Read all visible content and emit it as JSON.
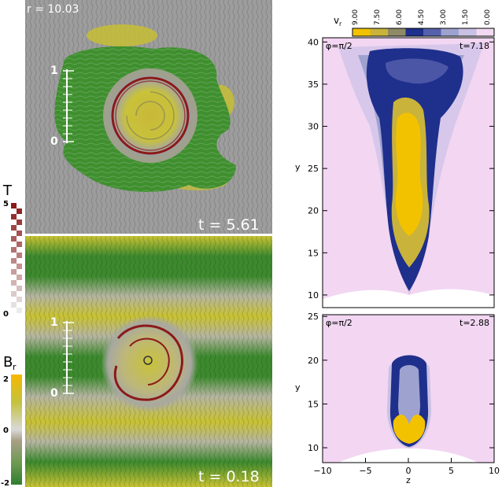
{
  "left_panels": {
    "top": {
      "radius_label": "r = 10.03",
      "time_label": "t = 5.61",
      "scale_ticks": [
        "1",
        "0"
      ]
    },
    "bottom": {
      "time_label": "t = 0.18",
      "scale_ticks": [
        "1",
        "0"
      ]
    }
  },
  "colorbars": {
    "temperature": {
      "label": "T",
      "max": "5",
      "min": "0"
    },
    "br": {
      "label": "B",
      "subscript": "r",
      "ticks": [
        "2",
        "0",
        "-2"
      ]
    },
    "vr": {
      "label": "v",
      "subscript": "r",
      "ticks": [
        "9.00",
        "7.50",
        "6.00",
        "4.50",
        "3.00",
        "1.50",
        "0.00"
      ],
      "colors": [
        "#f2c200",
        "#c9b33a",
        "#8e8a66",
        "#1f2f8c",
        "#5661ad",
        "#9ea2cf",
        "#c9c1e4",
        "#f2d8f2"
      ]
    }
  },
  "right_panels": {
    "top": {
      "phi_label": "φ=π/2",
      "time_label": "t=7.18",
      "ylabel": "y",
      "yticks": [
        "40",
        "35",
        "30",
        "25",
        "20",
        "15",
        "10"
      ]
    },
    "bottom": {
      "phi_label": "φ=π/2",
      "time_label": "t=2.88",
      "ylabel": "y",
      "xlabel": "z",
      "yticks": [
        "25",
        "20",
        "15",
        "10"
      ],
      "xticks": [
        "−10",
        "−5",
        "0",
        "5",
        "10"
      ]
    }
  },
  "colors": {
    "field_green": "#3f8f2f",
    "field_yellow": "#c9c12e",
    "grey_bg": "#9d9d9d",
    "ring_red": "#8b1a1a",
    "pink_bg": "#f2d6f2",
    "blue_core": "#1f2f8c",
    "yellow_core": "#f2c200"
  }
}
